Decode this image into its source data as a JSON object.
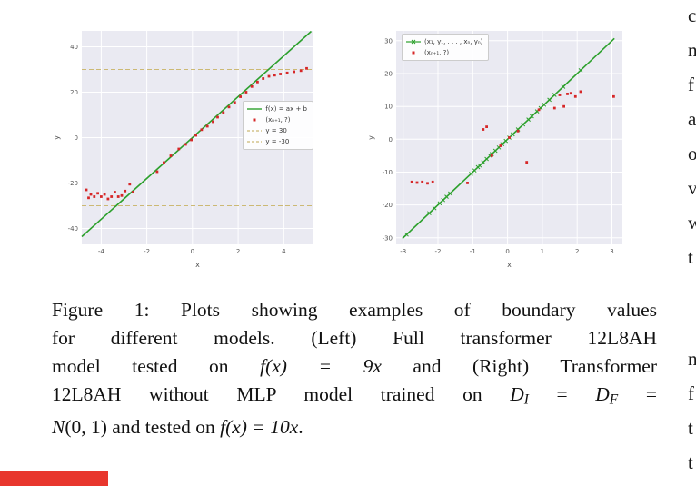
{
  "colors": {
    "plot_bg": "#eaeaf2",
    "grid": "#ffffff",
    "green": "#2ca02c",
    "red": "#d62728",
    "dashed": "#ccb974",
    "tick": "#555555",
    "red_bar": "#e8362d"
  },
  "chart_data": [
    {
      "type": "scatter",
      "title": "",
      "xlabel": "x",
      "ylabel": "y",
      "xlim": [
        -4.85,
        5.3
      ],
      "ylim": [
        -47,
        47
      ],
      "xticks": [
        -4,
        -2,
        0,
        2,
        4
      ],
      "yticks": [
        -40,
        -20,
        0,
        20,
        40
      ],
      "grid": true,
      "hlines": [
        {
          "y": 30
        },
        {
          "y": -30
        }
      ],
      "line": {
        "endpoints": [
          [
            -4.85,
            -43.6
          ],
          [
            5.2,
            46.8
          ]
        ]
      },
      "points": [
        [
          -4.65,
          -23
        ],
        [
          -4.55,
          -26.5
        ],
        [
          -4.45,
          -25
        ],
        [
          -4.3,
          -26
        ],
        [
          -4.15,
          -24.5
        ],
        [
          -4.0,
          -26
        ],
        [
          -3.85,
          -25
        ],
        [
          -3.7,
          -27
        ],
        [
          -3.55,
          -26
        ],
        [
          -3.4,
          -24
        ],
        [
          -3.25,
          -26
        ],
        [
          -3.1,
          -25.5
        ],
        [
          -2.95,
          -23.5
        ],
        [
          -2.75,
          -20.5
        ],
        [
          -2.6,
          -24
        ],
        [
          -1.55,
          -15
        ],
        [
          -1.25,
          -11
        ],
        [
          -0.95,
          -8
        ],
        [
          -0.6,
          -5
        ],
        [
          -0.3,
          -3
        ],
        [
          -0.05,
          -1
        ],
        [
          0.15,
          1
        ],
        [
          0.4,
          3.5
        ],
        [
          0.65,
          5
        ],
        [
          0.9,
          7
        ],
        [
          1.1,
          9
        ],
        [
          1.35,
          11
        ],
        [
          1.6,
          13.5
        ],
        [
          1.85,
          15.5
        ],
        [
          2.1,
          18
        ],
        [
          2.35,
          20
        ],
        [
          2.6,
          22.5
        ],
        [
          2.85,
          24.5
        ],
        [
          3.1,
          26
        ],
        [
          3.35,
          27
        ],
        [
          3.6,
          27.5
        ],
        [
          3.85,
          28
        ],
        [
          4.15,
          28.5
        ],
        [
          4.45,
          29
        ],
        [
          4.75,
          29.5
        ],
        [
          5.0,
          30.5
        ]
      ],
      "legend": {
        "position": "right-center",
        "entries": [
          {
            "swatch": "line",
            "label": "f(x) = ax + b"
          },
          {
            "swatch": "square",
            "label": "(xₙ₊₁, ?)"
          },
          {
            "swatch": "dash",
            "label": "y = 30"
          },
          {
            "swatch": "dash",
            "label": "y = -30"
          }
        ]
      }
    },
    {
      "type": "scatter",
      "title": "",
      "xlabel": "x",
      "ylabel": "y",
      "xlim": [
        -3.2,
        3.3
      ],
      "ylim": [
        -32,
        33
      ],
      "xticks": [
        -3,
        -2,
        -1,
        0,
        1,
        2,
        3
      ],
      "yticks": [
        -30,
        -20,
        -10,
        0,
        10,
        20,
        30
      ],
      "grid": true,
      "hlines": [],
      "line": {
        "endpoints": [
          [
            -3.02,
            -30.2
          ],
          [
            3.07,
            30.7
          ]
        ],
        "marker_points": [
          [
            -2.9,
            -29
          ],
          [
            -2.25,
            -22.5
          ],
          [
            -2.1,
            -21
          ],
          [
            -1.95,
            -19.5
          ],
          [
            -1.85,
            -18.5
          ],
          [
            -1.75,
            -17.5
          ],
          [
            -1.65,
            -16.5
          ],
          [
            -1.05,
            -10.5
          ],
          [
            -0.95,
            -9.5
          ],
          [
            -0.85,
            -8.5
          ],
          [
            -0.8,
            -8
          ],
          [
            -0.7,
            -7
          ],
          [
            -0.6,
            -6
          ],
          [
            -0.5,
            -5
          ],
          [
            -0.45,
            -4.5
          ],
          [
            -0.35,
            -3.5
          ],
          [
            -0.25,
            -2.5
          ],
          [
            -0.15,
            -1.5
          ],
          [
            -0.05,
            -0.5
          ],
          [
            0.05,
            0.5
          ],
          [
            0.15,
            1.5
          ],
          [
            0.3,
            3
          ],
          [
            0.45,
            4.5
          ],
          [
            0.6,
            6
          ],
          [
            0.7,
            7
          ],
          [
            0.85,
            8.5
          ],
          [
            0.95,
            9.5
          ],
          [
            1.05,
            10.5
          ],
          [
            1.2,
            12
          ],
          [
            1.35,
            13.5
          ],
          [
            1.6,
            16
          ],
          [
            2.1,
            21
          ]
        ]
      },
      "points": [
        [
          -2.75,
          -13
        ],
        [
          -2.6,
          -13.2
        ],
        [
          -2.45,
          -13
        ],
        [
          -2.3,
          -13.4
        ],
        [
          -2.15,
          -13
        ],
        [
          -1.15,
          -13.3
        ],
        [
          -0.7,
          3
        ],
        [
          -0.6,
          3.8
        ],
        [
          -0.45,
          -5
        ],
        [
          -0.2,
          -2
        ],
        [
          0.05,
          0.5
        ],
        [
          0.3,
          2.5
        ],
        [
          0.55,
          -7
        ],
        [
          0.9,
          9
        ],
        [
          1.35,
          9.5
        ],
        [
          1.5,
          13.5
        ],
        [
          1.62,
          10
        ],
        [
          1.72,
          13.8
        ],
        [
          1.82,
          14
        ],
        [
          1.95,
          13
        ],
        [
          2.1,
          14.5
        ],
        [
          3.05,
          13
        ]
      ],
      "legend": {
        "position": "top-left",
        "entries": [
          {
            "swatch": "line-x",
            "label": "(x₁, y₁, . . . , xₙ, yₙ)"
          },
          {
            "swatch": "square",
            "label": "(xₙ₊₁, ?)"
          }
        ]
      }
    }
  ],
  "caption": {
    "lines": [
      {
        "segments": [
          {
            "t": "Figure 1: Plots showing examples of boundary values"
          }
        ]
      },
      {
        "segments": [
          {
            "t": "for different models. (Left) Full transformer 12L8AH"
          }
        ]
      },
      {
        "segments": [
          {
            "t": "model tested on "
          },
          {
            "t": "f(x) = 9x"
          },
          {
            "t": " and (Right) Transformer"
          }
        ]
      },
      {
        "segments": [
          {
            "t": "12L8AH without MLP model trained on "
          },
          {
            "t": "D"
          },
          {
            "t": "I"
          },
          {
            "t": " = "
          },
          {
            "t": "D"
          },
          {
            "t": "F"
          },
          {
            "t": " ="
          }
        ]
      },
      {
        "segments": [
          {
            "t": "N"
          },
          {
            "t": "(0, 1)"
          },
          {
            "t": " and tested on "
          },
          {
            "t": "f(x) = 10x"
          },
          {
            "t": "."
          }
        ]
      }
    ]
  },
  "edge_text": {
    "letters": [
      "c",
      "n",
      "f",
      "a",
      "o",
      "v",
      "w",
      "t",
      "n",
      "f",
      "t",
      "t"
    ]
  }
}
